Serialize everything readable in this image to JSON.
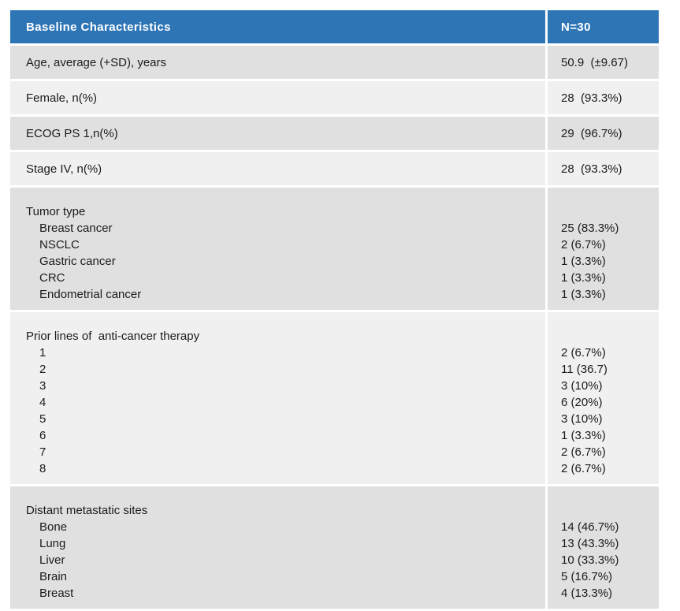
{
  "table": {
    "header": {
      "label": "Baseline Characteristics",
      "value": "N=30"
    },
    "rows": [
      {
        "kind": "simple",
        "shade": "dark",
        "label": "Age, average (+SD), years",
        "value": "50.9  (±9.67)"
      },
      {
        "kind": "simple",
        "shade": "light",
        "label": "Female, n(%)",
        "value": "28  (93.3%)"
      },
      {
        "kind": "simple",
        "shade": "dark",
        "label": "ECOG PS 1,n(%)",
        "value": "29  (96.7%)"
      },
      {
        "kind": "simple",
        "shade": "light",
        "label": "Stage IV, n(%)",
        "value": "28  (93.3%)"
      },
      {
        "kind": "group",
        "shade": "dark",
        "title": "Tumor type",
        "items": [
          {
            "label": "Breast cancer",
            "value": "25 (83.3%)"
          },
          {
            "label": "NSCLC",
            "value": "2 (6.7%)"
          },
          {
            "label": "Gastric cancer",
            "value": "1 (3.3%)"
          },
          {
            "label": "CRC",
            "value": "1 (3.3%)"
          },
          {
            "label": "Endometrial cancer",
            "value": "1 (3.3%)"
          }
        ]
      },
      {
        "kind": "group",
        "shade": "light",
        "title": "Prior lines of  anti-cancer therapy",
        "items": [
          {
            "label": "1",
            "value": "2 (6.7%)"
          },
          {
            "label": "2",
            "value": "11 (36.7)"
          },
          {
            "label": "3",
            "value": "3 (10%)"
          },
          {
            "label": "4",
            "value": "6 (20%)"
          },
          {
            "label": "5",
            "value": "3 (10%)"
          },
          {
            "label": "6",
            "value": "1 (3.3%)"
          },
          {
            "label": "7",
            "value": "2 (6.7%)"
          },
          {
            "label": "8",
            "value": "2 (6.7%)"
          }
        ]
      },
      {
        "kind": "group",
        "shade": "dark",
        "title": "Distant metastatic sites",
        "items": [
          {
            "label": "Bone",
            "value": "14 (46.7%)"
          },
          {
            "label": "Lung",
            "value": "13 (43.3%)"
          },
          {
            "label": "Liver",
            "value": "10 (33.3%)"
          },
          {
            "label": "Brain",
            "value": "5 (16.7%)"
          },
          {
            "label": "Breast",
            "value": "4 (13.3%)"
          }
        ]
      }
    ]
  },
  "colors": {
    "header_bg": "#2E75B6",
    "header_text": "#FFFFFF",
    "row_dark": "#E0E0E0",
    "row_light": "#F0F0F0",
    "divider": "#FFFFFF",
    "text": "#1B1B1B"
  }
}
